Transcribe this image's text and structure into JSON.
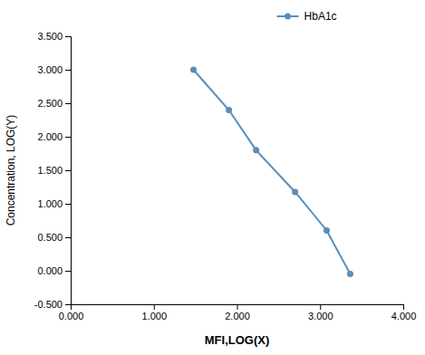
{
  "chart_data": {
    "type": "line",
    "x": [
      1.477,
      1.903,
      2.23,
      2.699,
      3.079,
      3.362
    ],
    "series": [
      {
        "name": "HbA1c",
        "color": "#5b8db8",
        "marker": "circle",
        "values": [
          3.0,
          2.398,
          1.799,
          1.176,
          0.602,
          -0.046
        ]
      }
    ],
    "x_label": "MFI,LOG(X)",
    "y_label": "Concentration, LOG(Y)",
    "xlim": [
      0.0,
      4.0
    ],
    "ylim": [
      -0.5,
      3.5
    ],
    "xticks": [
      {
        "value": 0.0,
        "label": "0.000"
      },
      {
        "value": 1.0,
        "label": "1.000"
      },
      {
        "value": 2.0,
        "label": "2.000"
      },
      {
        "value": 3.0,
        "label": "3.000"
      },
      {
        "value": 4.0,
        "label": "4.000"
      }
    ],
    "yticks": [
      {
        "value": -0.5,
        "label": "-0.500"
      },
      {
        "value": 0.0,
        "label": "0.000"
      },
      {
        "value": 0.5,
        "label": "0.500"
      },
      {
        "value": 1.0,
        "label": "1.000"
      },
      {
        "value": 1.5,
        "label": "1.500"
      },
      {
        "value": 2.0,
        "label": "2.000"
      },
      {
        "value": 2.5,
        "label": "2.500"
      },
      {
        "value": 3.0,
        "label": "3.000"
      },
      {
        "value": 3.5,
        "label": "3.500"
      }
    ],
    "grid": false,
    "legend": "top"
  }
}
